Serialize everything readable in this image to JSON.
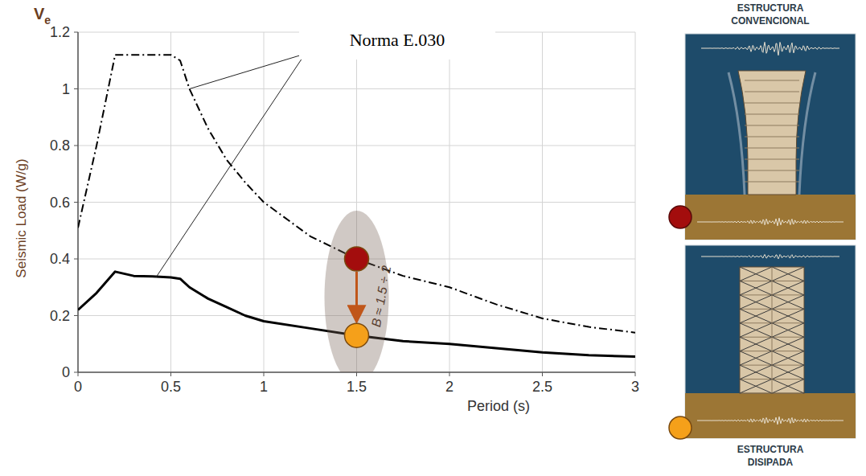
{
  "chart_data": {
    "type": "line",
    "y_symbol": "Ve",
    "y_label": "Seismic Load (W/g)",
    "x_label": "Period (s)",
    "xlim": [
      0,
      3
    ],
    "ylim": [
      0,
      1.2
    ],
    "xticks": [
      0,
      0.5,
      1,
      1.5,
      2,
      2.5,
      3
    ],
    "yticks": [
      0,
      0.2,
      0.4,
      0.6,
      0.8,
      1,
      1.2
    ],
    "grid": true,
    "x": [
      0,
      0.1,
      0.2,
      0.3,
      0.4,
      0.5,
      0.55,
      0.6,
      0.7,
      0.8,
      0.9,
      1,
      1.25,
      1.5,
      1.75,
      2,
      2.25,
      2.5,
      2.75,
      3
    ],
    "series": [
      {
        "color": "#000000",
        "line_style": "dashdot",
        "values": [
          0.51,
          0.8,
          1.12,
          1.12,
          1.12,
          1.12,
          1.1,
          1.0,
          0.86,
          0.75,
          0.67,
          0.6,
          0.48,
          0.4,
          0.34,
          0.3,
          0.24,
          0.19,
          0.16,
          0.14
        ]
      },
      {
        "color": "#000000",
        "line_style": "solid",
        "values": [
          0.22,
          0.28,
          0.355,
          0.34,
          0.338,
          0.335,
          0.33,
          0.3,
          0.26,
          0.23,
          0.2,
          0.18,
          0.155,
          0.13,
          0.11,
          0.1,
          0.085,
          0.07,
          0.06,
          0.055
        ]
      }
    ],
    "annotations": [
      {
        "text": "Norma E.030",
        "targets": [
          {
            "x": 0.6,
            "y": 1.0
          },
          {
            "x": 0.42,
            "y": 0.335
          }
        ]
      },
      {
        "text": "B ≈ 1.5 ÷ 2"
      }
    ],
    "markers": [
      {
        "x": 1.5,
        "y": 0.4,
        "color": "#a30d0d"
      },
      {
        "x": 1.5,
        "y": 0.13,
        "color": "#f5a01a"
      }
    ]
  },
  "panels": [
    {
      "label": "ESTRUCTURA CONVENCIONAL",
      "color": "#a30d0d"
    },
    {
      "label": "ESTRUCTURA DISIPADA",
      "color": "#f5a01a"
    }
  ]
}
